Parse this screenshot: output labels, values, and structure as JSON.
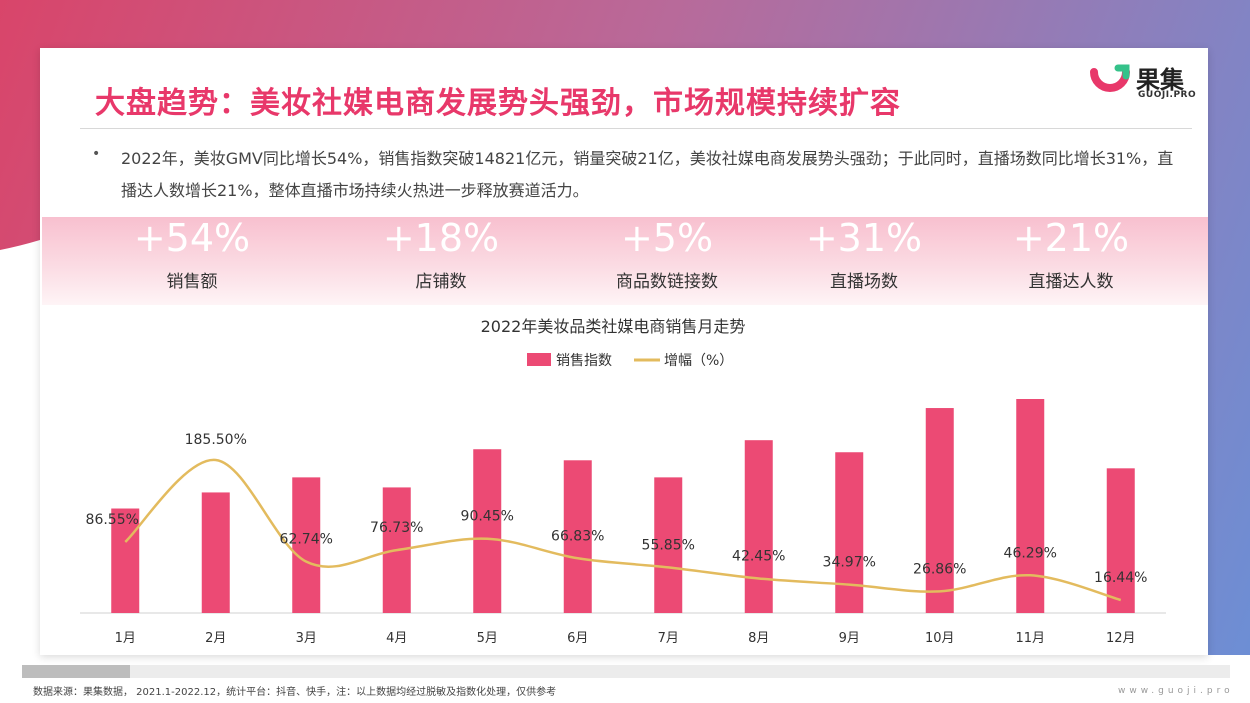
{
  "page": {
    "title": "大盘趋势：美妆社媒电商发展势头强劲，市场规模持续扩容",
    "logo_cn": "果集",
    "logo_en": "GUOJI.PRO",
    "bullet": "2022年，美妆GMV同比增长54%，销售指数突破14821亿元，销量突破21亿，美妆社媒电商发展势头强劲；于此同时，直播场数同比增长31%，直播达人数增长21%，整体直播市场持续火热进一步释放赛道活力。",
    "source": "数据来源：果集数据， 2021.1-2022.12，统计平台：抖音、快手，注：以上数据均经过脱敏及指数化处理，仅供参考",
    "website": "www.guoji.pro"
  },
  "stats": [
    {
      "value": "+54%",
      "label": "销售额"
    },
    {
      "value": "+18%",
      "label": "店铺数"
    },
    {
      "value": "+5%",
      "label": "商品数链接数"
    },
    {
      "value": "+31%",
      "label": "直播场数"
    },
    {
      "value": "+21%",
      "label": "直播达人数"
    }
  ],
  "colors": {
    "accent": "#e8386a",
    "bar": "#ec4a74",
    "line": "#e3bb5e",
    "band": "#f8c0cf"
  },
  "chart_data": {
    "type": "bar",
    "title": "2022年美妆品类社媒电商销售月走势",
    "categories": [
      "1月",
      "2月",
      "3月",
      "4月",
      "5月",
      "6月",
      "7月",
      "8月",
      "9月",
      "10月",
      "11月",
      "12月"
    ],
    "series": [
      {
        "name": "销售指数",
        "type": "bar",
        "values": [
          104,
          120,
          135,
          125,
          163,
          152,
          135,
          172,
          160,
          204,
          213,
          144
        ]
      },
      {
        "name": "增幅（%）",
        "type": "line",
        "smooth": true,
        "values": [
          86.55,
          185.5,
          62.74,
          76.73,
          90.45,
          66.83,
          55.85,
          42.45,
          34.97,
          26.86,
          46.29,
          16.44
        ],
        "labels": [
          "86.55%",
          "185.50%",
          "62.74%",
          "76.73%",
          "90.45%",
          "66.83%",
          "55.85%",
          "42.45%",
          "34.97%",
          "26.86%",
          "46.29%",
          "16.44%"
        ]
      }
    ],
    "legend": "top-center",
    "grid": false
  }
}
